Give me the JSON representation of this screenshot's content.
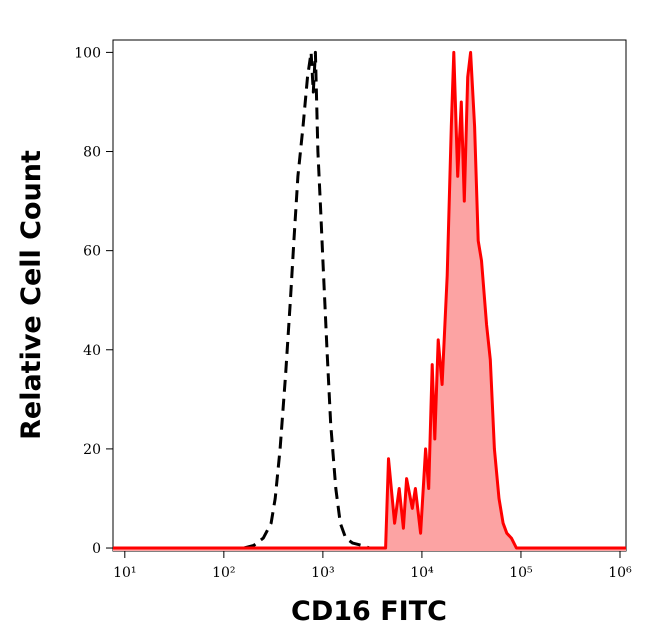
{
  "chart_data": {
    "type": "histogram-overlay",
    "xlabel": "CD16 FITC",
    "ylabel": "Relative Cell Count",
    "xscale": "log",
    "xlim": [
      7.6,
      1150000
    ],
    "ylim": [
      -0.6,
      102.5
    ],
    "xticks": [
      {
        "value": 10,
        "label": "10¹"
      },
      {
        "value": 100,
        "label": "10²"
      },
      {
        "value": 1000,
        "label": "10³"
      },
      {
        "value": 10000,
        "label": "10⁴"
      },
      {
        "value": 100000,
        "label": "10⁵"
      },
      {
        "value": 1000000,
        "label": "10⁶"
      }
    ],
    "yticks": [
      0,
      20,
      40,
      60,
      80,
      100
    ],
    "series": [
      {
        "color": "#000000",
        "line_style": "dashed",
        "fill": null,
        "x": [
          160,
          200,
          250,
          300,
          330,
          370,
          420,
          470,
          510,
          560,
          630,
          700,
          760,
          800,
          840,
          890,
          950,
          1000,
          1100,
          1200,
          1350,
          1500,
          1700,
          2000,
          2500,
          2950
        ],
        "values": [
          0,
          0.5,
          2,
          5,
          10,
          20,
          35,
          50,
          62,
          75,
          85,
          95,
          100,
          92,
          100,
          80,
          68,
          58,
          40,
          25,
          12,
          5,
          2,
          1,
          0.5,
          0
        ]
      },
      {
        "color": "#ff0000",
        "line_style": "solid",
        "fill": "#fca3a3",
        "x": [
          7.6,
          4300,
          4600,
          5300,
          5900,
          6500,
          7000,
          8000,
          8600,
          9700,
          10900,
          11700,
          12700,
          13500,
          14600,
          16000,
          18000,
          19800,
          21000,
          23000,
          25000,
          26800,
          29000,
          31000,
          34000,
          37000,
          40000,
          45000,
          49000,
          54000,
          60000,
          66000,
          72000,
          80000,
          90000,
          1150000
        ],
        "values": [
          0,
          0,
          18,
          5,
          12,
          4,
          14,
          8,
          12,
          3,
          20,
          12,
          37,
          22,
          42,
          33,
          55,
          85,
          100,
          75,
          90,
          70,
          95,
          100,
          85,
          62,
          58,
          45,
          38,
          20,
          10,
          5,
          3,
          2,
          0,
          0
        ]
      }
    ]
  }
}
